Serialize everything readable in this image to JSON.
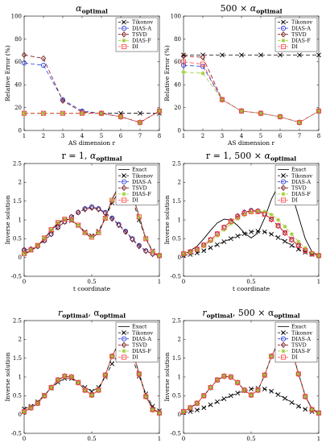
{
  "legend_names": {
    "exact": "Exact",
    "tik": "Tikonov",
    "diasa": "DIAS-A",
    "tsvd": "TSVD",
    "diasf": "DIAS-F",
    "di": "DI"
  },
  "series_styles": {
    "exact": {
      "color": "#000000",
      "dash": "",
      "marker": "none"
    },
    "tik": {
      "color": "#000000",
      "dash": "5,3",
      "marker": "x"
    },
    "diasa": {
      "color": "#2b3fd8",
      "dash": "5,3",
      "marker": "circle"
    },
    "tsvd": {
      "color": "#7a1c1c",
      "dash": "5,3",
      "marker": "diamond"
    },
    "diasf": {
      "color": "#9acd32",
      "dash": "5,3",
      "marker": "star"
    },
    "di": {
      "color": "#ff4d4d",
      "dash": "5,3",
      "marker": "square"
    }
  },
  "chart_data": [
    {
      "type": "line",
      "title_prefix": "",
      "title_main": "α",
      "title_sub": "optimal",
      "xlabel": "AS dimension r",
      "ylabel": "Relative Error (%)",
      "xlim": [
        1,
        8
      ],
      "ylim": [
        0,
        100
      ],
      "xticks": [
        1,
        2,
        3,
        4,
        5,
        6,
        7,
        8
      ],
      "yticks": [
        0,
        20,
        40,
        60,
        80,
        100
      ],
      "legend": [
        "tik",
        "diasa",
        "tsvd",
        "diasf",
        "di"
      ],
      "x": [
        1,
        2,
        3,
        4,
        5,
        6,
        7,
        8
      ],
      "series": [
        {
          "key": "tik",
          "values": [
            15,
            15,
            15,
            15,
            15,
            15,
            15,
            15
          ]
        },
        {
          "key": "diasa",
          "values": [
            59,
            57,
            27,
            17,
            15,
            12,
            7,
            17
          ]
        },
        {
          "key": "tsvd",
          "values": [
            66,
            63,
            26,
            16,
            15,
            12,
            7,
            17
          ]
        },
        {
          "key": "diasf",
          "values": [
            15,
            15,
            15,
            15,
            15,
            12,
            7,
            17
          ]
        },
        {
          "key": "di",
          "values": [
            15,
            15,
            15,
            15,
            15,
            12,
            7,
            17
          ]
        }
      ]
    },
    {
      "type": "line",
      "title_prefix": "500 × ",
      "title_main": "α",
      "title_sub": "optimal",
      "xlabel": "AS dimension r",
      "ylabel": "Relative Error (%)",
      "xlim": [
        1,
        8
      ],
      "ylim": [
        0,
        100
      ],
      "xticks": [
        1,
        2,
        3,
        4,
        5,
        6,
        7,
        8
      ],
      "yticks": [
        0,
        20,
        40,
        60,
        80,
        100
      ],
      "legend": [
        "tik",
        "diasa",
        "tsvd",
        "diasf",
        "di"
      ],
      "x": [
        1,
        2,
        3,
        4,
        5,
        6,
        7,
        8
      ],
      "series": [
        {
          "key": "tik",
          "values": [
            66,
            66,
            66,
            66,
            66,
            66,
            66,
            66
          ]
        },
        {
          "key": "diasa",
          "values": [
            57,
            56,
            27,
            17,
            15,
            12,
            7,
            17
          ]
        },
        {
          "key": "tsvd",
          "values": [
            65,
            64,
            27,
            17,
            15,
            12,
            7,
            17
          ]
        },
        {
          "key": "diasf",
          "values": [
            51,
            50,
            27,
            17,
            15,
            12,
            7,
            17
          ]
        },
        {
          "key": "di",
          "values": [
            60,
            58,
            27,
            17,
            15,
            12,
            7,
            17
          ]
        }
      ]
    },
    {
      "type": "line",
      "title_prefix": "r = 1, ",
      "title_main": "α",
      "title_sub": "optimal",
      "xlabel": "t coordinate",
      "ylabel": "Inverse solution",
      "xlim": [
        0,
        1
      ],
      "ylim": [
        -0.5,
        2.5
      ],
      "xticks": [
        0,
        0.5,
        1
      ],
      "yticks": [
        -0.5,
        0,
        0.5,
        1,
        1.5,
        2,
        2.5
      ],
      "legend": [
        "exact",
        "tik",
        "diasa",
        "tsvd",
        "diasf",
        "di"
      ],
      "x": [
        0,
        0.05,
        0.1,
        0.15,
        0.2,
        0.25,
        0.3,
        0.35,
        0.4,
        0.45,
        0.5,
        0.55,
        0.6,
        0.65,
        0.7,
        0.75,
        0.8,
        0.85,
        0.9,
        0.95,
        1
      ],
      "series": [
        {
          "key": "exact",
          "values": [
            0.08,
            0.18,
            0.3,
            0.5,
            0.72,
            0.92,
            1.02,
            1.0,
            0.85,
            0.65,
            0.52,
            0.65,
            1.05,
            1.55,
            1.9,
            2.02,
            1.7,
            1.1,
            0.5,
            0.15,
            0.05
          ]
        },
        {
          "key": "tik",
          "values": [
            0.12,
            0.2,
            0.32,
            0.52,
            0.72,
            0.9,
            1.0,
            0.98,
            0.85,
            0.68,
            0.58,
            0.7,
            1.05,
            1.45,
            1.75,
            1.85,
            1.55,
            1.0,
            0.5,
            0.18,
            0.05
          ]
        },
        {
          "key": "diasa",
          "values": [
            0.2,
            0.22,
            0.3,
            0.45,
            0.62,
            0.8,
            0.95,
            1.08,
            1.2,
            1.3,
            1.35,
            1.3,
            1.2,
            1.05,
            0.88,
            0.7,
            0.5,
            0.32,
            0.18,
            0.1,
            0.05
          ]
        },
        {
          "key": "tsvd",
          "values": [
            0.2,
            0.22,
            0.3,
            0.45,
            0.62,
            0.8,
            0.95,
            1.08,
            1.2,
            1.28,
            1.32,
            1.28,
            1.18,
            1.03,
            0.86,
            0.68,
            0.48,
            0.3,
            0.17,
            0.09,
            0.05
          ]
        },
        {
          "key": "diasf",
          "values": [
            0.1,
            0.2,
            0.32,
            0.52,
            0.74,
            0.93,
            1.02,
            1.0,
            0.86,
            0.66,
            0.54,
            0.66,
            1.04,
            1.52,
            1.88,
            2.0,
            1.68,
            1.08,
            0.5,
            0.15,
            0.05
          ]
        },
        {
          "key": "di",
          "values": [
            0.1,
            0.2,
            0.32,
            0.52,
            0.74,
            0.93,
            1.02,
            1.0,
            0.86,
            0.66,
            0.54,
            0.66,
            1.04,
            1.52,
            1.88,
            2.0,
            1.68,
            1.08,
            0.5,
            0.15,
            0.05
          ]
        }
      ]
    },
    {
      "type": "line",
      "title_prefix": "r = 1, 500 × ",
      "title_main": "α",
      "title_sub": "optimal",
      "xlabel": "t coordinate",
      "ylabel": "Inverse solution",
      "xlim": [
        0,
        1
      ],
      "ylim": [
        -0.5,
        2.5
      ],
      "xticks": [
        0,
        0.5,
        1
      ],
      "yticks": [
        -0.5,
        0,
        0.5,
        1,
        1.5,
        2,
        2.5
      ],
      "legend": [
        "exact",
        "tik",
        "diasa",
        "tsvd",
        "diasf",
        "di"
      ],
      "x": [
        0,
        0.05,
        0.1,
        0.15,
        0.2,
        0.25,
        0.3,
        0.35,
        0.4,
        0.45,
        0.5,
        0.55,
        0.6,
        0.65,
        0.7,
        0.75,
        0.8,
        0.85,
        0.9,
        0.95,
        1
      ],
      "series": [
        {
          "key": "exact",
          "values": [
            0.08,
            0.18,
            0.3,
            0.5,
            0.72,
            0.92,
            1.02,
            1.0,
            0.85,
            0.65,
            0.52,
            0.65,
            1.05,
            1.55,
            1.9,
            2.02,
            1.7,
            1.1,
            0.5,
            0.15,
            0.05
          ]
        },
        {
          "key": "tik",
          "values": [
            0.05,
            0.08,
            0.12,
            0.18,
            0.26,
            0.34,
            0.42,
            0.5,
            0.57,
            0.63,
            0.68,
            0.7,
            0.68,
            0.62,
            0.53,
            0.43,
            0.32,
            0.22,
            0.14,
            0.08,
            0.05
          ]
        },
        {
          "key": "diasa",
          "values": [
            0.1,
            0.15,
            0.22,
            0.33,
            0.47,
            0.63,
            0.8,
            0.97,
            1.1,
            1.2,
            1.25,
            1.24,
            1.16,
            1.02,
            0.85,
            0.66,
            0.48,
            0.32,
            0.19,
            0.1,
            0.05
          ]
        },
        {
          "key": "tsvd",
          "values": [
            0.1,
            0.15,
            0.22,
            0.33,
            0.47,
            0.63,
            0.8,
            0.97,
            1.1,
            1.2,
            1.24,
            1.23,
            1.15,
            1.01,
            0.84,
            0.65,
            0.47,
            0.31,
            0.18,
            0.1,
            0.05
          ]
        },
        {
          "key": "diasf",
          "values": [
            0.1,
            0.14,
            0.2,
            0.3,
            0.43,
            0.58,
            0.74,
            0.9,
            1.03,
            1.13,
            1.2,
            1.24,
            1.22,
            1.14,
            1.0,
            0.82,
            0.62,
            0.42,
            0.25,
            0.13,
            0.05
          ]
        },
        {
          "key": "di",
          "values": [
            0.1,
            0.15,
            0.22,
            0.33,
            0.47,
            0.63,
            0.8,
            0.96,
            1.08,
            1.17,
            1.22,
            1.22,
            1.15,
            1.02,
            0.85,
            0.66,
            0.48,
            0.32,
            0.19,
            0.1,
            0.05
          ]
        }
      ]
    },
    {
      "type": "line",
      "title_prefix": "",
      "title_main": "r",
      "title_sub": "optimal",
      "title_suffix": ", α",
      "title_sub2": "optimal",
      "xlabel": "t coordinate",
      "ylabel": "Inverse solution",
      "xlim": [
        0,
        1
      ],
      "ylim": [
        -0.5,
        2.5
      ],
      "xticks": [
        0,
        0.5,
        1
      ],
      "yticks": [
        -0.5,
        0,
        0.5,
        1,
        1.5,
        2,
        2.5
      ],
      "legend": [
        "exact",
        "tik",
        "diasa",
        "tsvd",
        "diasf",
        "di"
      ],
      "x": [
        0,
        0.05,
        0.1,
        0.15,
        0.2,
        0.25,
        0.3,
        0.35,
        0.4,
        0.45,
        0.5,
        0.55,
        0.6,
        0.65,
        0.7,
        0.75,
        0.8,
        0.85,
        0.9,
        0.95,
        1
      ],
      "series": [
        {
          "key": "exact",
          "values": [
            0.08,
            0.18,
            0.3,
            0.5,
            0.72,
            0.92,
            1.02,
            1.0,
            0.85,
            0.65,
            0.52,
            0.65,
            1.05,
            1.55,
            1.9,
            2.02,
            1.7,
            1.1,
            0.5,
            0.15,
            0.05
          ]
        },
        {
          "key": "tik",
          "values": [
            0.15,
            0.22,
            0.34,
            0.52,
            0.7,
            0.86,
            0.96,
            0.96,
            0.86,
            0.72,
            0.62,
            0.72,
            1.0,
            1.35,
            1.62,
            1.72,
            1.5,
            1.02,
            0.55,
            0.22,
            0.1
          ]
        },
        {
          "key": "diasa",
          "values": [
            0.08,
            0.18,
            0.3,
            0.5,
            0.72,
            0.92,
            1.02,
            1.0,
            0.85,
            0.65,
            0.52,
            0.65,
            1.05,
            1.55,
            1.9,
            2.0,
            1.68,
            1.08,
            0.48,
            0.13,
            0.04
          ]
        },
        {
          "key": "tsvd",
          "values": [
            0.08,
            0.18,
            0.3,
            0.5,
            0.72,
            0.92,
            1.02,
            1.0,
            0.85,
            0.65,
            0.52,
            0.65,
            1.05,
            1.55,
            1.9,
            2.0,
            1.68,
            1.08,
            0.48,
            0.13,
            0.04
          ]
        },
        {
          "key": "diasf",
          "values": [
            0.08,
            0.18,
            0.3,
            0.5,
            0.72,
            0.92,
            1.02,
            1.0,
            0.85,
            0.65,
            0.52,
            0.65,
            1.05,
            1.55,
            1.9,
            2.0,
            1.68,
            1.08,
            0.48,
            0.13,
            0.04
          ]
        },
        {
          "key": "di",
          "values": [
            0.08,
            0.18,
            0.3,
            0.5,
            0.72,
            0.92,
            1.02,
            1.0,
            0.85,
            0.65,
            0.52,
            0.65,
            1.05,
            1.55,
            1.9,
            2.0,
            1.68,
            1.08,
            0.48,
            0.13,
            0.04
          ]
        }
      ]
    },
    {
      "type": "line",
      "title_prefix": "",
      "title_main": "r",
      "title_sub": "optimal",
      "title_suffix": ", 500 × α",
      "title_sub2": "optimal",
      "xlabel": "t coordinate",
      "ylabel": "Inverse solution",
      "xlim": [
        0,
        1
      ],
      "ylim": [
        -0.5,
        2.5
      ],
      "xticks": [
        0,
        0.5,
        1
      ],
      "yticks": [
        -0.5,
        0,
        0.5,
        1,
        1.5,
        2,
        2.5
      ],
      "legend": [
        "exact",
        "tik",
        "diasa",
        "tsvd",
        "diasf",
        "di"
      ],
      "x": [
        0,
        0.05,
        0.1,
        0.15,
        0.2,
        0.25,
        0.3,
        0.35,
        0.4,
        0.45,
        0.5,
        0.55,
        0.6,
        0.65,
        0.7,
        0.75,
        0.8,
        0.85,
        0.9,
        0.95,
        1
      ],
      "series": [
        {
          "key": "exact",
          "values": [
            0.08,
            0.18,
            0.3,
            0.5,
            0.72,
            0.92,
            1.02,
            1.0,
            0.85,
            0.65,
            0.52,
            0.65,
            1.05,
            1.55,
            1.9,
            2.02,
            1.7,
            1.1,
            0.5,
            0.15,
            0.05
          ]
        },
        {
          "key": "tik",
          "values": [
            0.05,
            0.08,
            0.12,
            0.18,
            0.26,
            0.34,
            0.42,
            0.5,
            0.57,
            0.63,
            0.68,
            0.7,
            0.68,
            0.62,
            0.53,
            0.43,
            0.32,
            0.22,
            0.14,
            0.08,
            0.05
          ]
        },
        {
          "key": "diasa",
          "values": [
            0.08,
            0.18,
            0.3,
            0.5,
            0.72,
            0.92,
            1.02,
            1.0,
            0.85,
            0.65,
            0.52,
            0.65,
            1.05,
            1.55,
            1.9,
            2.0,
            1.68,
            1.08,
            0.48,
            0.13,
            0.04
          ]
        },
        {
          "key": "tsvd",
          "values": [
            0.08,
            0.18,
            0.3,
            0.5,
            0.72,
            0.92,
            1.02,
            1.0,
            0.85,
            0.65,
            0.52,
            0.65,
            1.05,
            1.55,
            1.9,
            2.0,
            1.68,
            1.08,
            0.48,
            0.13,
            0.04
          ]
        },
        {
          "key": "diasf",
          "values": [
            0.08,
            0.18,
            0.3,
            0.5,
            0.72,
            0.92,
            1.02,
            1.0,
            0.85,
            0.65,
            0.52,
            0.65,
            1.05,
            1.55,
            1.9,
            2.0,
            1.68,
            1.08,
            0.48,
            0.13,
            0.04
          ]
        },
        {
          "key": "di",
          "values": [
            0.08,
            0.18,
            0.3,
            0.5,
            0.72,
            0.92,
            1.02,
            1.0,
            0.85,
            0.65,
            0.52,
            0.65,
            1.05,
            1.55,
            1.9,
            2.0,
            1.68,
            1.08,
            0.48,
            0.13,
            0.04
          ]
        }
      ]
    }
  ]
}
